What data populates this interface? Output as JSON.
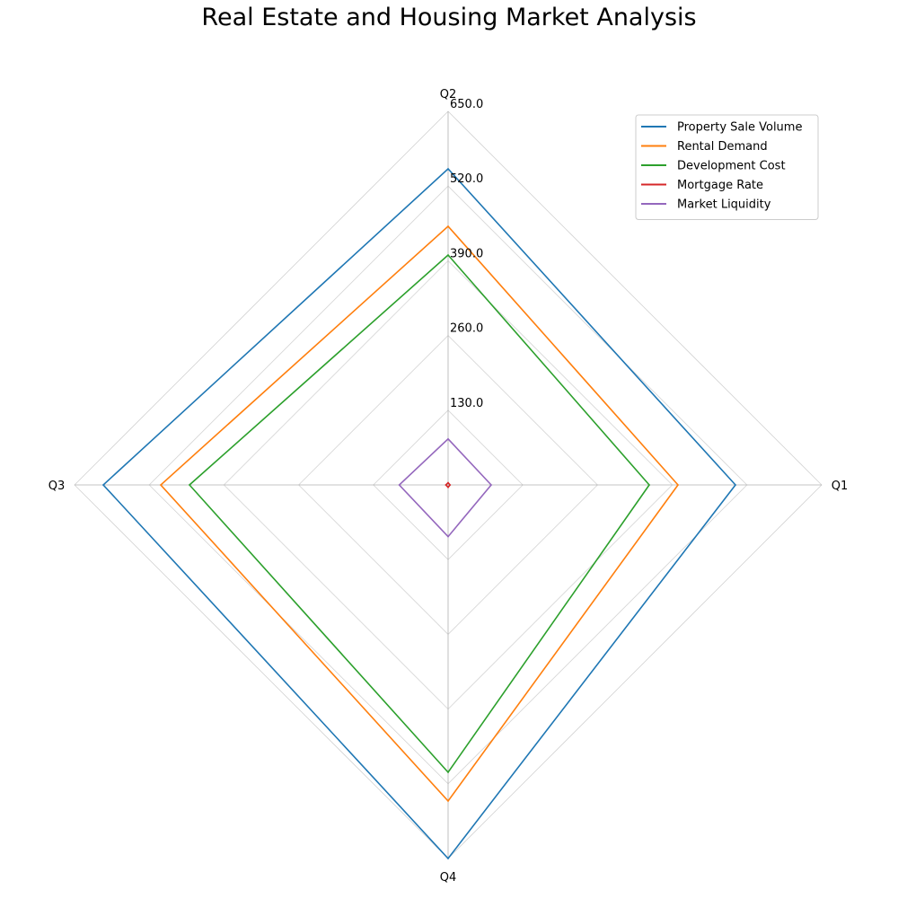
{
  "chart_data": {
    "type": "radar",
    "title": "Real Estate and Housing Market Analysis",
    "categories": [
      "Q1",
      "Q2",
      "Q3",
      "Q4"
    ],
    "r_ticks": [
      "130.0",
      "260.0",
      "390.0",
      "520.0",
      "650.0"
    ],
    "r_max": 650,
    "grid": true,
    "legend_position": "top-right",
    "series": [
      {
        "name": "Property Sale Volume",
        "color": "#1f77b4",
        "values": [
          500,
          550,
          600,
          650
        ]
      },
      {
        "name": "Rental Demand",
        "color": "#ff7f0e",
        "values": [
          400,
          450,
          500,
          550
        ]
      },
      {
        "name": "Development Cost",
        "color": "#2ca02c",
        "values": [
          350,
          400,
          450,
          500
        ]
      },
      {
        "name": "Mortgage Rate",
        "color": "#d62728",
        "values": [
          3.5,
          3.8,
          4.0,
          4.2
        ]
      },
      {
        "name": "Market Liquidity",
        "color": "#9467bd",
        "values": [
          75,
          80,
          85,
          90
        ]
      }
    ]
  }
}
